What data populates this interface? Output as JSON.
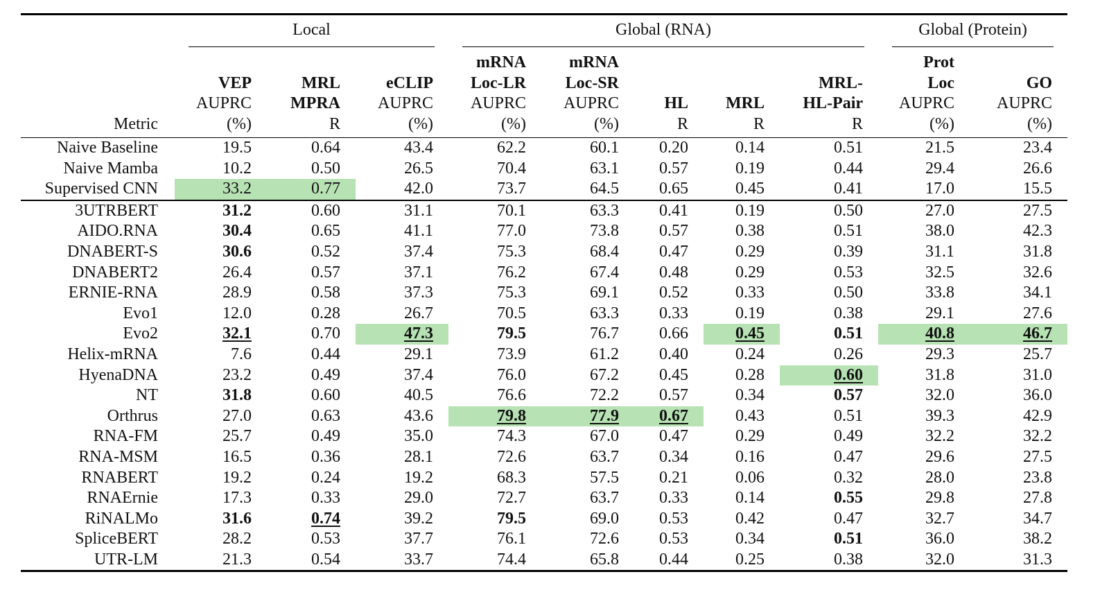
{
  "highlight_color": "#b7e2b4",
  "groups": [
    {
      "label": "Local",
      "span": 3
    },
    {
      "label": "Global (RNA)",
      "span": 5
    },
    {
      "label": "Global (Protein)",
      "span": 2
    }
  ],
  "metric_header": "Metric",
  "columns": [
    {
      "name_lines": [
        "VEP"
      ],
      "unit_lines": [
        "AUPRC",
        "(%)"
      ]
    },
    {
      "name_lines": [
        "MRL",
        "MPRA"
      ],
      "unit_lines": [
        "R"
      ]
    },
    {
      "name_lines": [
        "eCLIP"
      ],
      "unit_lines": [
        "AUPRC",
        "(%)"
      ]
    },
    {
      "name_lines": [
        "mRNA",
        "Loc-LR"
      ],
      "unit_lines": [
        "AUPRC",
        "(%)"
      ]
    },
    {
      "name_lines": [
        "mRNA",
        "Loc-SR"
      ],
      "unit_lines": [
        "AUPRC",
        "(%)"
      ]
    },
    {
      "name_lines": [
        "HL"
      ],
      "unit_lines": [
        "R"
      ]
    },
    {
      "name_lines": [
        "MRL"
      ],
      "unit_lines": [
        "R"
      ]
    },
    {
      "name_lines": [
        "MRL-",
        "HL-Pair"
      ],
      "unit_lines": [
        "R"
      ]
    },
    {
      "name_lines": [
        "Prot",
        "Loc"
      ],
      "unit_lines": [
        "AUPRC",
        "(%)"
      ]
    },
    {
      "name_lines": [
        "GO"
      ],
      "unit_lines": [
        "AUPRC",
        "(%)"
      ]
    }
  ],
  "baseline_rows": [
    {
      "name": "Naive Baseline",
      "cells": [
        {
          "v": "19.5"
        },
        {
          "v": "0.64"
        },
        {
          "v": "43.4"
        },
        {
          "v": "62.2"
        },
        {
          "v": "60.1"
        },
        {
          "v": "0.20"
        },
        {
          "v": "0.14"
        },
        {
          "v": "0.51"
        },
        {
          "v": "21.5"
        },
        {
          "v": "23.4"
        }
      ]
    },
    {
      "name": "Naive Mamba",
      "cells": [
        {
          "v": "10.2"
        },
        {
          "v": "0.50"
        },
        {
          "v": "26.5"
        },
        {
          "v": "70.4"
        },
        {
          "v": "63.1"
        },
        {
          "v": "0.57"
        },
        {
          "v": "0.19"
        },
        {
          "v": "0.44"
        },
        {
          "v": "29.4"
        },
        {
          "v": "26.6"
        }
      ]
    },
    {
      "name": "Supervised CNN",
      "cells": [
        {
          "v": "33.2",
          "hl": true
        },
        {
          "v": "0.77",
          "hl": true
        },
        {
          "v": "42.0"
        },
        {
          "v": "73.7"
        },
        {
          "v": "64.5"
        },
        {
          "v": "0.65"
        },
        {
          "v": "0.45"
        },
        {
          "v": "0.41"
        },
        {
          "v": "17.0"
        },
        {
          "v": "15.5"
        }
      ]
    }
  ],
  "model_rows": [
    {
      "name": "3UTRBERT",
      "cells": [
        {
          "v": "31.2",
          "b": true
        },
        {
          "v": "0.60"
        },
        {
          "v": "31.1"
        },
        {
          "v": "70.1"
        },
        {
          "v": "63.3"
        },
        {
          "v": "0.41"
        },
        {
          "v": "0.19"
        },
        {
          "v": "0.50"
        },
        {
          "v": "27.0"
        },
        {
          "v": "27.5"
        }
      ]
    },
    {
      "name": "AIDO.RNA",
      "cells": [
        {
          "v": "30.4",
          "b": true
        },
        {
          "v": "0.65"
        },
        {
          "v": "41.1"
        },
        {
          "v": "77.0"
        },
        {
          "v": "73.8"
        },
        {
          "v": "0.57"
        },
        {
          "v": "0.38"
        },
        {
          "v": "0.51"
        },
        {
          "v": "38.0"
        },
        {
          "v": "42.3"
        }
      ]
    },
    {
      "name": "DNABERT-S",
      "cells": [
        {
          "v": "30.6",
          "b": true
        },
        {
          "v": "0.52"
        },
        {
          "v": "37.4"
        },
        {
          "v": "75.3"
        },
        {
          "v": "68.4"
        },
        {
          "v": "0.47"
        },
        {
          "v": "0.29"
        },
        {
          "v": "0.39"
        },
        {
          "v": "31.1"
        },
        {
          "v": "31.8"
        }
      ]
    },
    {
      "name": "DNABERT2",
      "cells": [
        {
          "v": "26.4"
        },
        {
          "v": "0.57"
        },
        {
          "v": "37.1"
        },
        {
          "v": "76.2"
        },
        {
          "v": "67.4"
        },
        {
          "v": "0.48"
        },
        {
          "v": "0.29"
        },
        {
          "v": "0.53"
        },
        {
          "v": "32.5"
        },
        {
          "v": "32.6"
        }
      ]
    },
    {
      "name": "ERNIE-RNA",
      "cells": [
        {
          "v": "28.9"
        },
        {
          "v": "0.58"
        },
        {
          "v": "37.3"
        },
        {
          "v": "75.3"
        },
        {
          "v": "69.1"
        },
        {
          "v": "0.52"
        },
        {
          "v": "0.33"
        },
        {
          "v": "0.50"
        },
        {
          "v": "33.8"
        },
        {
          "v": "34.1"
        }
      ]
    },
    {
      "name": "Evo1",
      "cells": [
        {
          "v": "12.0"
        },
        {
          "v": "0.28"
        },
        {
          "v": "26.7"
        },
        {
          "v": "70.5"
        },
        {
          "v": "63.3"
        },
        {
          "v": "0.33"
        },
        {
          "v": "0.19"
        },
        {
          "v": "0.38"
        },
        {
          "v": "29.1"
        },
        {
          "v": "27.6"
        }
      ]
    },
    {
      "name": "Evo2",
      "cells": [
        {
          "v": "32.1",
          "b": true,
          "u": true
        },
        {
          "v": "0.70"
        },
        {
          "v": "47.3",
          "b": true,
          "u": true,
          "hl": true
        },
        {
          "v": "79.5",
          "b": true
        },
        {
          "v": "76.7"
        },
        {
          "v": "0.66"
        },
        {
          "v": "0.45",
          "b": true,
          "u": true,
          "hl": true
        },
        {
          "v": "0.51",
          "b": true
        },
        {
          "v": "40.8",
          "b": true,
          "u": true,
          "hl": true
        },
        {
          "v": "46.7",
          "b": true,
          "u": true,
          "hl": true
        }
      ]
    },
    {
      "name": "Helix-mRNA",
      "cells": [
        {
          "v": "7.6"
        },
        {
          "v": "0.44"
        },
        {
          "v": "29.1"
        },
        {
          "v": "73.9"
        },
        {
          "v": "61.2"
        },
        {
          "v": "0.40"
        },
        {
          "v": "0.24"
        },
        {
          "v": "0.26"
        },
        {
          "v": "29.3"
        },
        {
          "v": "25.7"
        }
      ]
    },
    {
      "name": "HyenaDNA",
      "cells": [
        {
          "v": "23.2"
        },
        {
          "v": "0.49"
        },
        {
          "v": "37.4"
        },
        {
          "v": "76.0"
        },
        {
          "v": "67.2"
        },
        {
          "v": "0.45"
        },
        {
          "v": "0.28"
        },
        {
          "v": "0.60",
          "b": true,
          "u": true,
          "hl": true
        },
        {
          "v": "31.8"
        },
        {
          "v": "31.0"
        }
      ]
    },
    {
      "name": "NT",
      "cells": [
        {
          "v": "31.8",
          "b": true
        },
        {
          "v": "0.60"
        },
        {
          "v": "40.5"
        },
        {
          "v": "76.6"
        },
        {
          "v": "72.2"
        },
        {
          "v": "0.57"
        },
        {
          "v": "0.34"
        },
        {
          "v": "0.57",
          "b": true
        },
        {
          "v": "32.0"
        },
        {
          "v": "36.0"
        }
      ]
    },
    {
      "name": "Orthrus",
      "cells": [
        {
          "v": "27.0"
        },
        {
          "v": "0.63"
        },
        {
          "v": "43.6"
        },
        {
          "v": "79.8",
          "b": true,
          "u": true,
          "hl": true
        },
        {
          "v": "77.9",
          "b": true,
          "u": true,
          "hl": true
        },
        {
          "v": "0.67",
          "b": true,
          "u": true,
          "hl": true
        },
        {
          "v": "0.43"
        },
        {
          "v": "0.51"
        },
        {
          "v": "39.3"
        },
        {
          "v": "42.9"
        }
      ]
    },
    {
      "name": "RNA-FM",
      "cells": [
        {
          "v": "25.7"
        },
        {
          "v": "0.49"
        },
        {
          "v": "35.0"
        },
        {
          "v": "74.3"
        },
        {
          "v": "67.0"
        },
        {
          "v": "0.47"
        },
        {
          "v": "0.29"
        },
        {
          "v": "0.49"
        },
        {
          "v": "32.2"
        },
        {
          "v": "32.2"
        }
      ]
    },
    {
      "name": "RNA-MSM",
      "cells": [
        {
          "v": "16.5"
        },
        {
          "v": "0.36"
        },
        {
          "v": "28.1"
        },
        {
          "v": "72.6"
        },
        {
          "v": "63.7"
        },
        {
          "v": "0.34"
        },
        {
          "v": "0.16"
        },
        {
          "v": "0.47"
        },
        {
          "v": "29.6"
        },
        {
          "v": "27.5"
        }
      ]
    },
    {
      "name": "RNABERT",
      "cells": [
        {
          "v": "19.2"
        },
        {
          "v": "0.24"
        },
        {
          "v": "19.2"
        },
        {
          "v": "68.3"
        },
        {
          "v": "57.5"
        },
        {
          "v": "0.21"
        },
        {
          "v": "0.06"
        },
        {
          "v": "0.32"
        },
        {
          "v": "28.0"
        },
        {
          "v": "23.8"
        }
      ]
    },
    {
      "name": "RNAErnie",
      "cells": [
        {
          "v": "17.3"
        },
        {
          "v": "0.33"
        },
        {
          "v": "29.0"
        },
        {
          "v": "72.7"
        },
        {
          "v": "63.7"
        },
        {
          "v": "0.33"
        },
        {
          "v": "0.14"
        },
        {
          "v": "0.55",
          "b": true
        },
        {
          "v": "29.8"
        },
        {
          "v": "27.8"
        }
      ]
    },
    {
      "name": "RiNALMo",
      "cells": [
        {
          "v": "31.6",
          "b": true
        },
        {
          "v": "0.74",
          "b": true,
          "u": true
        },
        {
          "v": "39.2"
        },
        {
          "v": "79.5",
          "b": true
        },
        {
          "v": "69.0"
        },
        {
          "v": "0.53"
        },
        {
          "v": "0.42"
        },
        {
          "v": "0.47"
        },
        {
          "v": "32.7"
        },
        {
          "v": "34.7"
        }
      ]
    },
    {
      "name": "SpliceBERT",
      "cells": [
        {
          "v": "28.2"
        },
        {
          "v": "0.53"
        },
        {
          "v": "37.7"
        },
        {
          "v": "76.1"
        },
        {
          "v": "72.6"
        },
        {
          "v": "0.53"
        },
        {
          "v": "0.34"
        },
        {
          "v": "0.51",
          "b": true
        },
        {
          "v": "36.0"
        },
        {
          "v": "38.2"
        }
      ]
    },
    {
      "name": "UTR-LM",
      "cells": [
        {
          "v": "21.3"
        },
        {
          "v": "0.54"
        },
        {
          "v": "33.7"
        },
        {
          "v": "74.4"
        },
        {
          "v": "65.8"
        },
        {
          "v": "0.44"
        },
        {
          "v": "0.25"
        },
        {
          "v": "0.38"
        },
        {
          "v": "32.0"
        },
        {
          "v": "31.3"
        }
      ]
    }
  ]
}
